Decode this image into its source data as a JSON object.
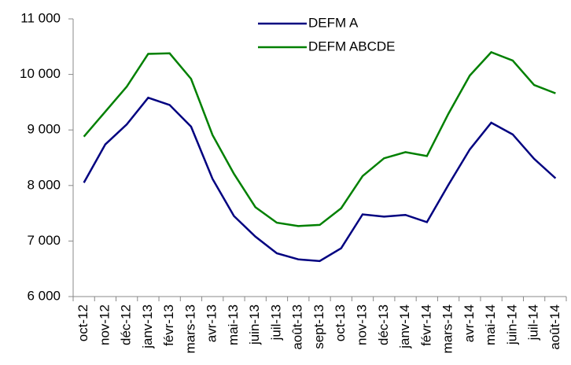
{
  "chart_data": {
    "type": "line",
    "categories": [
      "oct-12",
      "nov-12",
      "déc-12",
      "janv-13",
      "févr-13",
      "mars-13",
      "avr-13",
      "mai-13",
      "juin-13",
      "juil-13",
      "août-13",
      "sept-13",
      "oct-13",
      "nov-13",
      "déc-13",
      "janv-14",
      "févr-14",
      "mars-14",
      "avr-14",
      "mai-14",
      "juin-14",
      "juil-14",
      "août-14"
    ],
    "series": [
      {
        "name": "DEFM A",
        "color": "#000080",
        "values": [
          8050,
          8740,
          9100,
          9580,
          9450,
          9060,
          8120,
          7450,
          7080,
          6780,
          6670,
          6640,
          6870,
          7480,
          7440,
          7470,
          7340,
          8010,
          8650,
          9130,
          8920,
          8480,
          8130
        ]
      },
      {
        "name": "DEFM ABCDE",
        "color": "#008000",
        "values": [
          8880,
          9330,
          9780,
          10370,
          10380,
          9920,
          8910,
          8210,
          7610,
          7330,
          7270,
          7290,
          7590,
          8170,
          8490,
          8600,
          8530,
          9290,
          9980,
          10400,
          10250,
          9810,
          9660
        ]
      }
    ],
    "ylim": [
      6000,
      11000
    ],
    "yticks": [
      {
        "value": 6000,
        "label": "6 000"
      },
      {
        "value": 7000,
        "label": "7 000"
      },
      {
        "value": 8000,
        "label": "8 000"
      },
      {
        "value": 9000,
        "label": "9 000"
      },
      {
        "value": 10000,
        "label": "10 000"
      },
      {
        "value": 11000,
        "label": "11 000"
      }
    ],
    "grid": false,
    "legend": "top"
  }
}
